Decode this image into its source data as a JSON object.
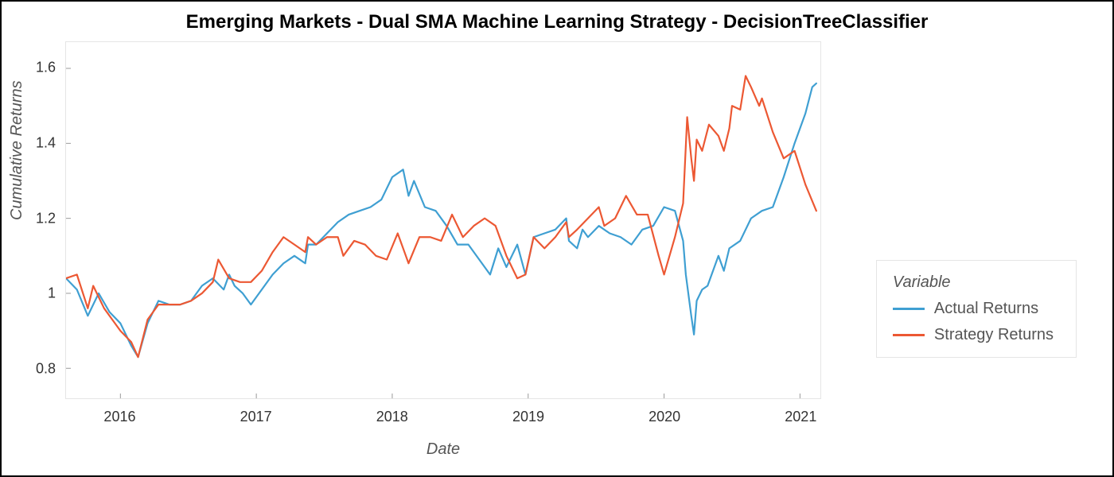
{
  "chart": {
    "type": "line",
    "title": "Emerging Markets - Dual SMA Machine Learning Strategy - DecisionTreeClassifier",
    "title_fontsize": 24,
    "title_fontweight": "bold",
    "xlabel": "Date",
    "ylabel": "Cumulative Returns",
    "label_fontsize": 20,
    "label_fontstyle": "italic",
    "background_color": "#ffffff",
    "border_color": "#000000",
    "plot_border_color": "#e5e5e5",
    "grid": false,
    "xlim": [
      2015.6,
      2021.15
    ],
    "ylim": [
      0.72,
      1.67
    ],
    "yticks": [
      0.8,
      1.0,
      1.2,
      1.4,
      1.6
    ],
    "ytick_labels": [
      "0.8",
      "1",
      "1.2",
      "1.4",
      "1.6"
    ],
    "xticks": [
      2016,
      2017,
      2018,
      2019,
      2020,
      2021
    ],
    "xtick_labels": [
      "2016",
      "2017",
      "2018",
      "2019",
      "2020",
      "2021"
    ],
    "tick_fontsize": 18,
    "line_width": 2.2,
    "legend": {
      "title": "Variable",
      "position": "right-middle",
      "border_color": "#e5e5e5",
      "fontsize": 20,
      "items": [
        {
          "label": "Actual Returns",
          "color": "#3f9fd2"
        },
        {
          "label": "Strategy Returns",
          "color": "#ec5833"
        }
      ]
    },
    "series": [
      {
        "name": "Actual Returns",
        "color": "#3f9fd2",
        "x": [
          2015.6,
          2015.68,
          2015.76,
          2015.84,
          2015.92,
          2016.0,
          2016.08,
          2016.13,
          2016.2,
          2016.28,
          2016.36,
          2016.44,
          2016.52,
          2016.6,
          2016.68,
          2016.76,
          2016.8,
          2016.84,
          2016.9,
          2016.96,
          2017.04,
          2017.12,
          2017.2,
          2017.28,
          2017.36,
          2017.38,
          2017.44,
          2017.52,
          2017.6,
          2017.68,
          2017.76,
          2017.84,
          2017.92,
          2018.0,
          2018.08,
          2018.12,
          2018.16,
          2018.24,
          2018.32,
          2018.4,
          2018.48,
          2018.56,
          2018.64,
          2018.72,
          2018.78,
          2018.84,
          2018.92,
          2018.98,
          2019.04,
          2019.12,
          2019.2,
          2019.28,
          2019.3,
          2019.36,
          2019.4,
          2019.44,
          2019.52,
          2019.6,
          2019.68,
          2019.76,
          2019.84,
          2019.92,
          2020.0,
          2020.08,
          2020.14,
          2020.16,
          2020.2,
          2020.22,
          2020.24,
          2020.28,
          2020.32,
          2020.4,
          2020.44,
          2020.48,
          2020.56,
          2020.64,
          2020.72,
          2020.8,
          2020.88,
          2020.96,
          2021.04,
          2021.09,
          2021.12
        ],
        "y": [
          1.04,
          1.01,
          0.94,
          1.0,
          0.95,
          0.92,
          0.86,
          0.83,
          0.92,
          0.98,
          0.97,
          0.97,
          0.98,
          1.02,
          1.04,
          1.01,
          1.05,
          1.02,
          1.0,
          0.97,
          1.01,
          1.05,
          1.08,
          1.1,
          1.08,
          1.13,
          1.13,
          1.16,
          1.19,
          1.21,
          1.22,
          1.23,
          1.25,
          1.31,
          1.33,
          1.26,
          1.3,
          1.23,
          1.22,
          1.18,
          1.13,
          1.13,
          1.09,
          1.05,
          1.12,
          1.07,
          1.13,
          1.05,
          1.15,
          1.16,
          1.17,
          1.2,
          1.14,
          1.12,
          1.17,
          1.15,
          1.18,
          1.16,
          1.15,
          1.13,
          1.17,
          1.18,
          1.23,
          1.22,
          1.14,
          1.05,
          0.94,
          0.89,
          0.98,
          1.01,
          1.02,
          1.1,
          1.06,
          1.12,
          1.14,
          1.2,
          1.22,
          1.23,
          1.31,
          1.4,
          1.48,
          1.55,
          1.56
        ]
      },
      {
        "name": "Strategy Returns",
        "color": "#ec5833",
        "x": [
          2015.6,
          2015.68,
          2015.76,
          2015.8,
          2015.88,
          2015.92,
          2016.0,
          2016.08,
          2016.13,
          2016.2,
          2016.28,
          2016.36,
          2016.44,
          2016.52,
          2016.6,
          2016.68,
          2016.72,
          2016.8,
          2016.88,
          2016.96,
          2017.04,
          2017.12,
          2017.2,
          2017.28,
          2017.36,
          2017.38,
          2017.44,
          2017.52,
          2017.6,
          2017.64,
          2017.72,
          2017.8,
          2017.88,
          2017.96,
          2018.04,
          2018.12,
          2018.2,
          2018.28,
          2018.36,
          2018.44,
          2018.52,
          2018.6,
          2018.68,
          2018.76,
          2018.84,
          2018.92,
          2018.98,
          2019.04,
          2019.12,
          2019.2,
          2019.28,
          2019.3,
          2019.36,
          2019.44,
          2019.52,
          2019.56,
          2019.64,
          2019.72,
          2019.8,
          2019.88,
          2019.96,
          2020.0,
          2020.08,
          2020.14,
          2020.17,
          2020.2,
          2020.22,
          2020.24,
          2020.28,
          2020.33,
          2020.4,
          2020.44,
          2020.48,
          2020.5,
          2020.56,
          2020.6,
          2020.64,
          2020.7,
          2020.72,
          2020.8,
          2020.88,
          2020.96,
          2021.04,
          2021.12
        ],
        "y": [
          1.04,
          1.05,
          0.96,
          1.02,
          0.96,
          0.94,
          0.9,
          0.87,
          0.83,
          0.93,
          0.97,
          0.97,
          0.97,
          0.98,
          1.0,
          1.03,
          1.09,
          1.04,
          1.03,
          1.03,
          1.06,
          1.11,
          1.15,
          1.13,
          1.11,
          1.15,
          1.13,
          1.15,
          1.15,
          1.1,
          1.14,
          1.13,
          1.1,
          1.09,
          1.16,
          1.08,
          1.15,
          1.15,
          1.14,
          1.21,
          1.15,
          1.18,
          1.2,
          1.18,
          1.1,
          1.04,
          1.05,
          1.15,
          1.12,
          1.15,
          1.19,
          1.15,
          1.17,
          1.2,
          1.23,
          1.18,
          1.2,
          1.26,
          1.21,
          1.21,
          1.1,
          1.05,
          1.15,
          1.24,
          1.47,
          1.36,
          1.3,
          1.41,
          1.38,
          1.45,
          1.42,
          1.38,
          1.44,
          1.5,
          1.49,
          1.58,
          1.55,
          1.5,
          1.52,
          1.43,
          1.36,
          1.38,
          1.29,
          1.22
        ]
      }
    ]
  }
}
